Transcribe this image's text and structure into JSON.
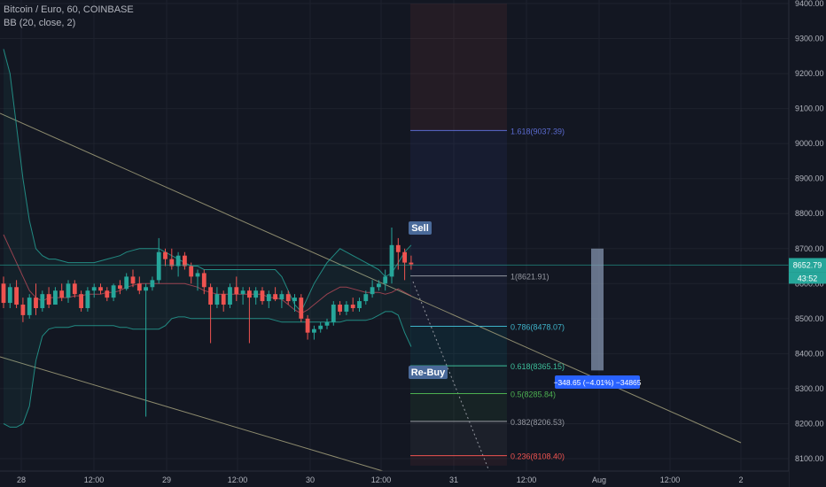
{
  "legend": {
    "symbol_line": "Bitcoin / Euro, 60, COINBASE",
    "indicator_line": "BB (20, close, 2)"
  },
  "price_axis": {
    "ticks": [
      "9400.00",
      "9300.00",
      "9200.00",
      "9100.00",
      "9000.00",
      "8900.00",
      "8800.00",
      "8700.00",
      "8600.00",
      "8500.00",
      "8400.00",
      "8300.00",
      "8200.00",
      "8100.00"
    ],
    "last_price": "8652.79",
    "countdown": "43:52"
  },
  "time_axis": {
    "labels": [
      "28",
      "12:00",
      "29",
      "12:00",
      "30",
      "12:00",
      "31",
      "12:00",
      "Aug",
      "12:00",
      "2"
    ]
  },
  "annotations": {
    "sell": "Sell",
    "rebuy": "Re-Buy",
    "measure": "−348.65 (−4.01%) −34865"
  },
  "fib_levels": [
    {
      "label": "1.618(9037.39)",
      "price": 9037.39,
      "color": "#5b6bd0"
    },
    {
      "label": "1(8621.91)",
      "price": 8621.91,
      "color": "#9598a1"
    },
    {
      "label": "0.786(8478.07)",
      "price": 8478.07,
      "color": "#3fb3c9"
    },
    {
      "label": "0.618(8365.15)",
      "price": 8365.15,
      "color": "#3dbf9a"
    },
    {
      "label": "0.5(8285.84)",
      "price": 8285.84,
      "color": "#4caf50"
    },
    {
      "label": "0.382(8206.53)",
      "price": 8206.53,
      "color": "#9598a1"
    },
    {
      "label": "0.236(8108.40)",
      "price": 8108.4,
      "color": "#ef5350"
    }
  ],
  "colors": {
    "background": "#131722",
    "up": "#26a69a",
    "down": "#ef5350",
    "bb_band": "#26a69a",
    "bb_basis": "#d05060",
    "trendline": "#8d8b6e",
    "label_bg": "#4a6a9a"
  },
  "chart_data": {
    "type": "candlestick",
    "symbol": "Bitcoin / Euro, 60, COINBASE",
    "interval": "60",
    "indicator": "BB (20, close, 2)",
    "ylim": [
      8085,
      9405
    ],
    "candles": [
      {
        "o": 8600,
        "h": 8620,
        "l": 8530,
        "c": 8545
      },
      {
        "o": 8545,
        "h": 8600,
        "l": 8530,
        "c": 8590
      },
      {
        "o": 8590,
        "h": 8610,
        "l": 8530,
        "c": 8540
      },
      {
        "o": 8540,
        "h": 8560,
        "l": 8490,
        "c": 8510
      },
      {
        "o": 8510,
        "h": 8570,
        "l": 8500,
        "c": 8560
      },
      {
        "o": 8560,
        "h": 8600,
        "l": 8510,
        "c": 8530
      },
      {
        "o": 8530,
        "h": 8580,
        "l": 8520,
        "c": 8570
      },
      {
        "o": 8570,
        "h": 8590,
        "l": 8530,
        "c": 8540
      },
      {
        "o": 8540,
        "h": 8590,
        "l": 8540,
        "c": 8580
      },
      {
        "o": 8580,
        "h": 8600,
        "l": 8550,
        "c": 8560
      },
      {
        "o": 8560,
        "h": 8610,
        "l": 8545,
        "c": 8600
      },
      {
        "o": 8600,
        "h": 8610,
        "l": 8560,
        "c": 8570
      },
      {
        "o": 8570,
        "h": 8580,
        "l": 8520,
        "c": 8530
      },
      {
        "o": 8530,
        "h": 8590,
        "l": 8520,
        "c": 8580
      },
      {
        "o": 8580,
        "h": 8600,
        "l": 8560,
        "c": 8590
      },
      {
        "o": 8590,
        "h": 8600,
        "l": 8570,
        "c": 8580
      },
      {
        "o": 8580,
        "h": 8590,
        "l": 8550,
        "c": 8560
      },
      {
        "o": 8560,
        "h": 8600,
        "l": 8550,
        "c": 8595
      },
      {
        "o": 8595,
        "h": 8610,
        "l": 8570,
        "c": 8585
      },
      {
        "o": 8585,
        "h": 8630,
        "l": 8580,
        "c": 8620
      },
      {
        "o": 8620,
        "h": 8640,
        "l": 8590,
        "c": 8600
      },
      {
        "o": 8600,
        "h": 8620,
        "l": 8570,
        "c": 8580
      },
      {
        "o": 8580,
        "h": 8600,
        "l": 8220,
        "c": 8590
      },
      {
        "o": 8590,
        "h": 8620,
        "l": 8580,
        "c": 8610
      },
      {
        "o": 8610,
        "h": 8730,
        "l": 8600,
        "c": 8690
      },
      {
        "o": 8690,
        "h": 8700,
        "l": 8650,
        "c": 8670
      },
      {
        "o": 8670,
        "h": 8700,
        "l": 8640,
        "c": 8650
      },
      {
        "o": 8650,
        "h": 8690,
        "l": 8620,
        "c": 8680
      },
      {
        "o": 8680,
        "h": 8690,
        "l": 8640,
        "c": 8650
      },
      {
        "o": 8650,
        "h": 8660,
        "l": 8600,
        "c": 8620
      },
      {
        "o": 8620,
        "h": 8640,
        "l": 8580,
        "c": 8630
      },
      {
        "o": 8630,
        "h": 8640,
        "l": 8570,
        "c": 8590
      },
      {
        "o": 8590,
        "h": 8600,
        "l": 8430,
        "c": 8540
      },
      {
        "o": 8540,
        "h": 8590,
        "l": 8530,
        "c": 8570
      },
      {
        "o": 8570,
        "h": 8580,
        "l": 8520,
        "c": 8540
      },
      {
        "o": 8540,
        "h": 8600,
        "l": 8530,
        "c": 8590
      },
      {
        "o": 8590,
        "h": 8620,
        "l": 8550,
        "c": 8570
      },
      {
        "o": 8570,
        "h": 8590,
        "l": 8540,
        "c": 8580
      },
      {
        "o": 8580,
        "h": 8590,
        "l": 8430,
        "c": 8560
      },
      {
        "o": 8560,
        "h": 8590,
        "l": 8540,
        "c": 8580
      },
      {
        "o": 8580,
        "h": 8590,
        "l": 8540,
        "c": 8550
      },
      {
        "o": 8550,
        "h": 8580,
        "l": 8530,
        "c": 8570
      },
      {
        "o": 8570,
        "h": 8590,
        "l": 8550,
        "c": 8555
      },
      {
        "o": 8555,
        "h": 8580,
        "l": 8530,
        "c": 8570
      },
      {
        "o": 8570,
        "h": 8580,
        "l": 8540,
        "c": 8550
      },
      {
        "o": 8550,
        "h": 8570,
        "l": 8520,
        "c": 8560
      },
      {
        "o": 8560,
        "h": 8570,
        "l": 8490,
        "c": 8500
      },
      {
        "o": 8500,
        "h": 8510,
        "l": 8440,
        "c": 8460
      },
      {
        "o": 8460,
        "h": 8480,
        "l": 8440,
        "c": 8470
      },
      {
        "o": 8470,
        "h": 8490,
        "l": 8460,
        "c": 8480
      },
      {
        "o": 8480,
        "h": 8500,
        "l": 8470,
        "c": 8490
      },
      {
        "o": 8490,
        "h": 8550,
        "l": 8480,
        "c": 8540
      },
      {
        "o": 8540,
        "h": 8550,
        "l": 8510,
        "c": 8520
      },
      {
        "o": 8520,
        "h": 8550,
        "l": 8510,
        "c": 8540
      },
      {
        "o": 8540,
        "h": 8560,
        "l": 8520,
        "c": 8530
      },
      {
        "o": 8530,
        "h": 8560,
        "l": 8520,
        "c": 8550
      },
      {
        "o": 8550,
        "h": 8580,
        "l": 8540,
        "c": 8570
      },
      {
        "o": 8570,
        "h": 8610,
        "l": 8560,
        "c": 8590
      },
      {
        "o": 8590,
        "h": 8610,
        "l": 8580,
        "c": 8600
      },
      {
        "o": 8600,
        "h": 8640,
        "l": 8580,
        "c": 8620
      },
      {
        "o": 8620,
        "h": 8760,
        "l": 8600,
        "c": 8710
      },
      {
        "o": 8710,
        "h": 8730,
        "l": 8640,
        "c": 8690
      },
      {
        "o": 8690,
        "h": 8700,
        "l": 8610,
        "c": 8660
      },
      {
        "o": 8660,
        "h": 8680,
        "l": 8640,
        "c": 8655
      }
    ],
    "bb_upper": [
      9270,
      9200,
      9050,
      8900,
      8780,
      8700,
      8680,
      8670,
      8670,
      8665,
      8660,
      8660,
      8660,
      8660,
      8660,
      8665,
      8670,
      8675,
      8680,
      8690,
      8695,
      8700,
      8700,
      8700,
      8700,
      8690,
      8680,
      8670,
      8660,
      8650,
      8650,
      8640,
      8640,
      8640,
      8640,
      8640,
      8640,
      8640,
      8640,
      8640,
      8640,
      8640,
      8640,
      8620,
      8580,
      8540,
      8520,
      8560,
      8600,
      8630,
      8660,
      8680,
      8700,
      8690,
      8680,
      8670,
      8660,
      8650,
      8640,
      8620,
      8630,
      8660,
      8690,
      8710
    ],
    "bb_lower": [
      8200,
      8190,
      8190,
      8200,
      8250,
      8380,
      8450,
      8470,
      8475,
      8475,
      8475,
      8480,
      8480,
      8480,
      8480,
      8480,
      8480,
      8480,
      8475,
      8475,
      8470,
      8470,
      8470,
      8470,
      8470,
      8480,
      8500,
      8505,
      8505,
      8500,
      8500,
      8500,
      8500,
      8500,
      8500,
      8500,
      8500,
      8500,
      8500,
      8500,
      8500,
      8500,
      8495,
      8490,
      8490,
      8490,
      8490,
      8490,
      8490,
      8490,
      8490,
      8490,
      8490,
      8495,
      8495,
      8495,
      8495,
      8500,
      8510,
      8520,
      8520,
      8510,
      8460,
      8420
    ],
    "bb_basis": [
      8740,
      8700,
      8660,
      8620,
      8580,
      8560,
      8550,
      8560,
      8560,
      8560,
      8560,
      8565,
      8565,
      8570,
      8570,
      8570,
      8575,
      8575,
      8580,
      8590,
      8595,
      8600,
      8600,
      8600,
      8600,
      8600,
      8600,
      8600,
      8600,
      8595,
      8590,
      8580,
      8575,
      8570,
      8570,
      8570,
      8570,
      8570,
      8570,
      8570,
      8570,
      8560,
      8560,
      8555,
      8540,
      8525,
      8515,
      8525,
      8540,
      8555,
      8570,
      8580,
      8590,
      8590,
      8585,
      8580,
      8575,
      8575,
      8575,
      8570,
      8575,
      8585,
      8575,
      8565
    ],
    "fibonacci": [
      {
        "ratio": 1.618,
        "price": 9037.39
      },
      {
        "ratio": 1,
        "price": 8621.91
      },
      {
        "ratio": 0.786,
        "price": 8478.07
      },
      {
        "ratio": 0.618,
        "price": 8365.15
      },
      {
        "ratio": 0.5,
        "price": 8285.84
      },
      {
        "ratio": 0.382,
        "price": 8206.53
      },
      {
        "ratio": 0.236,
        "price": 8108.4
      }
    ],
    "last_price": 8652.79,
    "measure": {
      "change": -348.65,
      "percent": -4.01,
      "top": 8700,
      "bottom": 8352
    }
  }
}
